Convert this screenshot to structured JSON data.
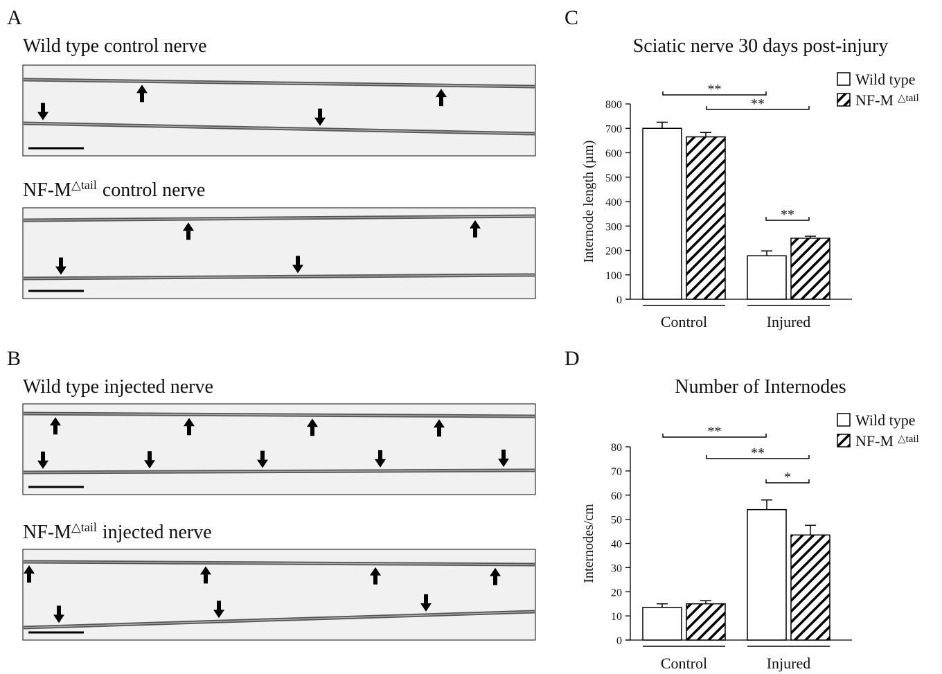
{
  "panels": [
    {
      "label": "A",
      "captions": [
        {
          "text": "Wild type control nerve"
        },
        {
          "text": "NF-M",
          "sup": "△tail",
          "rest": "control nerve"
        }
      ]
    },
    {
      "label": "B",
      "captions": [
        {
          "text": "Wild type injected nerve"
        },
        {
          "text": "NF-M",
          "sup": "△tail",
          "rest": "injected nerve"
        }
      ]
    }
  ],
  "chart_data": [
    {
      "label": "C",
      "type": "bar",
      "title": "Sciatic nerve 30 days post-injury",
      "ylabel": "Internode length (µm)",
      "categories": [
        "Control",
        "Injured"
      ],
      "series": [
        {
          "name": "Wild type",
          "color": "#ffffff",
          "values": [
            700,
            178
          ],
          "errors": [
            25,
            20
          ]
        },
        {
          "name": "NF-M",
          "name_sup": "△tail",
          "color": "#ffffff",
          "hatch": true,
          "values": [
            665,
            250
          ],
          "errors": [
            18,
            8
          ]
        }
      ],
      "ylim": [
        0,
        800
      ],
      "yticks": [
        0,
        100,
        200,
        300,
        400,
        500,
        600,
        700,
        800
      ],
      "annotations": [
        "**",
        "**",
        "**"
      ]
    },
    {
      "label": "D",
      "type": "bar",
      "title": "Number of Internodes",
      "ylabel": "Internodes/cm",
      "categories": [
        "Control",
        "Injured"
      ],
      "series": [
        {
          "name": "Wild type",
          "color": "#ffffff",
          "values": [
            13.5,
            54
          ],
          "errors": [
            1.5,
            4
          ]
        },
        {
          "name": "NF-M",
          "name_sup": "△tail",
          "color": "#ffffff",
          "hatch": true,
          "values": [
            15,
            43.5
          ],
          "errors": [
            1.3,
            4
          ]
        }
      ],
      "ylim": [
        0,
        80
      ],
      "yticks": [
        0,
        10,
        20,
        30,
        40,
        50,
        60,
        70,
        80
      ],
      "annotations": [
        "**",
        "**",
        "*"
      ]
    }
  ]
}
